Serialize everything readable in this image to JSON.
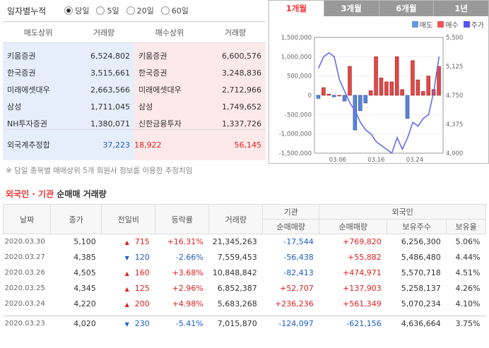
{
  "filter": {
    "label": "일자별누적",
    "options": [
      {
        "label": "당일",
        "selected": true
      },
      {
        "label": "5일",
        "selected": false
      },
      {
        "label": "20일",
        "selected": false
      },
      {
        "label": "60일",
        "selected": false
      }
    ]
  },
  "ranking": {
    "headers": [
      "매도상위",
      "거래량",
      "매수상위",
      "거래량"
    ],
    "sell": [
      {
        "name": "키움증권",
        "vol": "6,524,802"
      },
      {
        "name": "한국증권",
        "vol": "3,515,661"
      },
      {
        "name": "미래에셋대우",
        "vol": "2,663,566"
      },
      {
        "name": "삼성",
        "vol": "1,711,045"
      },
      {
        "name": "NH투자증권",
        "vol": "1,380,071"
      }
    ],
    "buy": [
      {
        "name": "키움증권",
        "vol": "6,600,576"
      },
      {
        "name": "한국증권",
        "vol": "3,248,836"
      },
      {
        "name": "미래에셋대우",
        "vol": "2,712,966"
      },
      {
        "name": "삼성",
        "vol": "1,749,652"
      },
      {
        "name": "신한금융투자",
        "vol": "1,337,726"
      }
    ],
    "foreign_label": "외국계추정합",
    "foreign_sell": "37,223",
    "foreign_net": "18,922",
    "foreign_buy": "56,145"
  },
  "note": "※ 당일 종목별 매매상위 5개 회원사 정보를 이용한 추정치임",
  "period_tabs": [
    {
      "label": "1개월",
      "active": true
    },
    {
      "label": "3개월",
      "active": false
    },
    {
      "label": "6개월",
      "active": false
    },
    {
      "label": "1년",
      "active": false
    }
  ],
  "legend": [
    {
      "label": "매도",
      "color": "#6699dd"
    },
    {
      "label": "매수",
      "color": "#ee5555"
    },
    {
      "label": "주가",
      "color": "#5555ee"
    }
  ],
  "chart_data": {
    "type": "bar",
    "y_left": {
      "ticks": [
        "1,500,000",
        "1,000,000",
        "500,000",
        "0",
        "-500,000",
        "-1,000,000",
        "-1,500,000"
      ],
      "range": [
        -1500000,
        1500000
      ]
    },
    "y_right": {
      "ticks": [
        "5,500",
        "5,125",
        "4,750",
        "4,375",
        "4,000"
      ],
      "range": [
        4000,
        5500
      ]
    },
    "x_ticks": [
      "03.06",
      "03.16",
      "03.24"
    ],
    "bars": [
      -80000,
      200000,
      30000,
      -40000,
      0,
      -150000,
      750000,
      -900000,
      -400000,
      -200000,
      120000,
      1000000,
      450000,
      350000,
      350000,
      1000000,
      150000,
      -600000,
      900000,
      400000,
      100000,
      500000,
      150000,
      750000
    ],
    "price": [
      5100,
      5250,
      5300,
      5250,
      4950,
      4800,
      4650,
      4550,
      4400,
      4300,
      4250,
      4150,
      4100,
      4050,
      4000,
      4200,
      4050,
      4200,
      4400,
      4350,
      4450,
      4500,
      4800,
      5250
    ]
  },
  "section": {
    "red": "외국인 · 기관",
    "rest": " 순매매 거래량"
  },
  "table": {
    "headers_top": [
      "날짜",
      "종가",
      "전일비",
      "등락률",
      "거래량",
      "기관",
      "외국인"
    ],
    "headers_sub": [
      "순매매량",
      "순매매량",
      "보유주수",
      "보유율"
    ],
    "rows": [
      {
        "date": "2020.03.30",
        "close": "5,100",
        "dir": "up",
        "chg": "715",
        "rate": "+16.31%",
        "vol": "21,345,263",
        "inst": "-17,544",
        "fnet": "+769,820",
        "hold": "6,256,300",
        "ratio": "5.06%"
      },
      {
        "date": "2020.03.27",
        "close": "4,385",
        "dir": "dn",
        "chg": "120",
        "rate": "-2.66%",
        "vol": "7,559,453",
        "inst": "-56,438",
        "fnet": "+55,882",
        "hold": "5,486,480",
        "ratio": "4.44%"
      },
      {
        "date": "2020.03.26",
        "close": "4,505",
        "dir": "up",
        "chg": "160",
        "rate": "+3.68%",
        "vol": "10,848,842",
        "inst": "-82,413",
        "fnet": "+474,971",
        "hold": "5,570,718",
        "ratio": "4.51%"
      },
      {
        "date": "2020.03.25",
        "close": "4,345",
        "dir": "up",
        "chg": "125",
        "rate": "+2.96%",
        "vol": "6,852,387",
        "inst": "+52,707",
        "fnet": "+137,903",
        "hold": "5,258,137",
        "ratio": "4.26%"
      },
      {
        "date": "2020.03.24",
        "close": "4,220",
        "dir": "up",
        "chg": "200",
        "rate": "+4.98%",
        "vol": "5,683,268",
        "inst": "+236,236",
        "fnet": "+561,349",
        "hold": "5,070,234",
        "ratio": "4.10%"
      },
      {
        "date": "2020.03.23",
        "close": "4,020",
        "dir": "dn",
        "chg": "230",
        "rate": "-5.41%",
        "vol": "7,015,870",
        "inst": "-124,097",
        "fnet": "-621,156",
        "hold": "4,636,664",
        "ratio": "3.75%"
      }
    ]
  }
}
